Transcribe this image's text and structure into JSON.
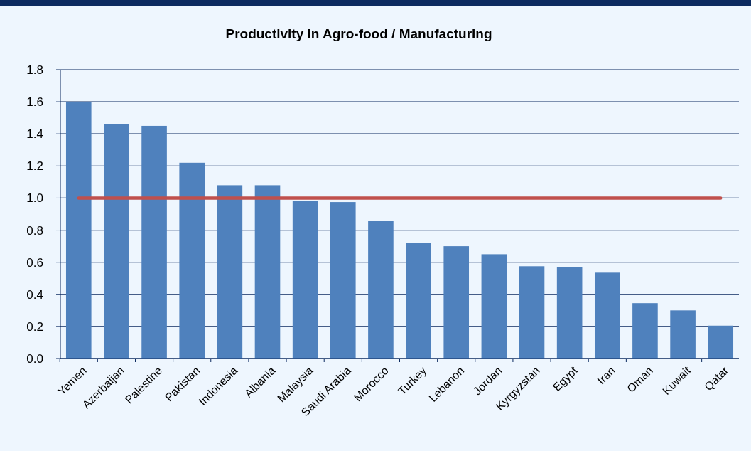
{
  "chart_data": {
    "type": "bar",
    "title": "Productivity in Agro-food / Manufacturing",
    "categories": [
      "Yemen",
      "Azerbaijan",
      "Palestine",
      "Pakistan",
      "Indonesia",
      "Albania",
      "Malaysia",
      "Saudi Arabia",
      "Morocco",
      "Turkey",
      "Lebanon",
      "Jordan",
      "Kyrgyzstan",
      "Egypt",
      "Iran",
      "Oman",
      "Kuwait",
      "Qatar"
    ],
    "values": [
      1.6,
      1.46,
      1.45,
      1.22,
      1.08,
      1.08,
      0.98,
      0.975,
      0.86,
      0.72,
      0.7,
      0.65,
      0.575,
      0.57,
      0.535,
      0.345,
      0.3,
      0.205
    ],
    "color": "#4f81bd",
    "ylim": [
      0,
      1.8
    ],
    "yticks": [
      {
        "value": 0,
        "label": "0.0"
      },
      {
        "value": 0.2,
        "label": "0.2"
      },
      {
        "value": 0.4,
        "label": "0.4"
      },
      {
        "value": 0.6,
        "label": "0.6"
      },
      {
        "value": 0.8,
        "label": "0.8"
      },
      {
        "value": 1,
        "label": "1.0"
      },
      {
        "value": 1.2,
        "label": "1.2"
      },
      {
        "value": 1.4,
        "label": "1.4"
      },
      {
        "value": 1.6,
        "label": "1.6"
      },
      {
        "value": 1.8,
        "label": "1.8"
      }
    ],
    "grid": "y",
    "ref_lines": [
      {
        "axis": "y",
        "value": 1,
        "color": "#c0504d"
      }
    ]
  }
}
